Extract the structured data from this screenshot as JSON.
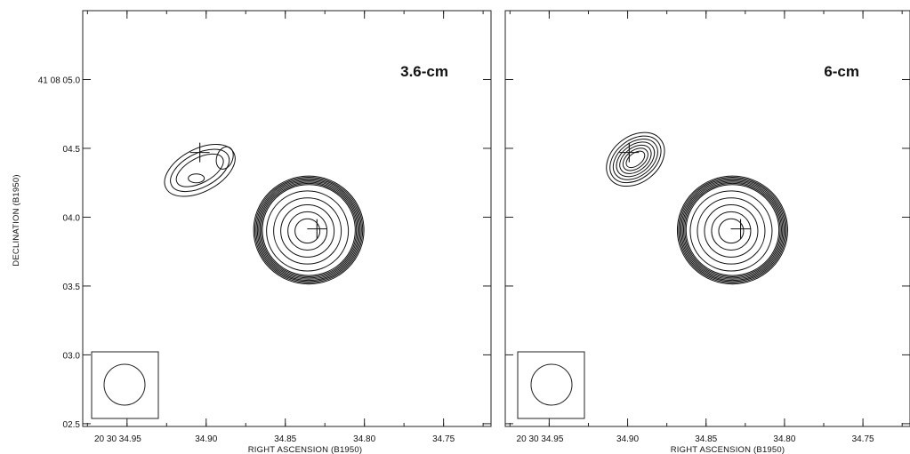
{
  "panels": [
    {
      "band_label": "3.6-cm",
      "compact_component": {
        "ra_s": 34.904,
        "dec_s": 4.34
      },
      "main_component": {
        "ra_s": 34.836,
        "dec_s": 3.9
      },
      "markers": [
        {
          "ra_s": 34.904,
          "dec_s": 4.47
        },
        {
          "ra_s": 34.83,
          "dec_s": 3.915
        }
      ]
    },
    {
      "band_label": "6-cm",
      "compact_component": {
        "ra_s": 34.895,
        "dec_s": 4.42
      },
      "main_component": {
        "ra_s": 34.834,
        "dec_s": 3.9
      },
      "markers": [
        {
          "ra_s": 34.899,
          "dec_s": 4.47
        },
        {
          "ra_s": 34.828,
          "dec_s": 3.915
        }
      ]
    }
  ],
  "axes": {
    "xlabel": "RIGHT ASCENSION (B1950)",
    "ylabel": "DECLINATION (B1950)",
    "x_tick_values": [
      34.95,
      34.9,
      34.85,
      34.8,
      34.75
    ],
    "x_tick_labels": [
      "20 30 34.95",
      "34.90",
      "34.85",
      "34.80",
      "34.75"
    ],
    "y_tick_values": [
      5.0,
      4.5,
      4.0,
      3.5,
      3.0,
      2.5
    ],
    "y_tick_labels": [
      "41 08 05.0",
      "04.5",
      "04.0",
      "03.5",
      "03.0",
      "02.5"
    ],
    "xlim": [
      34.978,
      34.72
    ],
    "ylim": [
      2.48,
      5.5
    ]
  }
}
